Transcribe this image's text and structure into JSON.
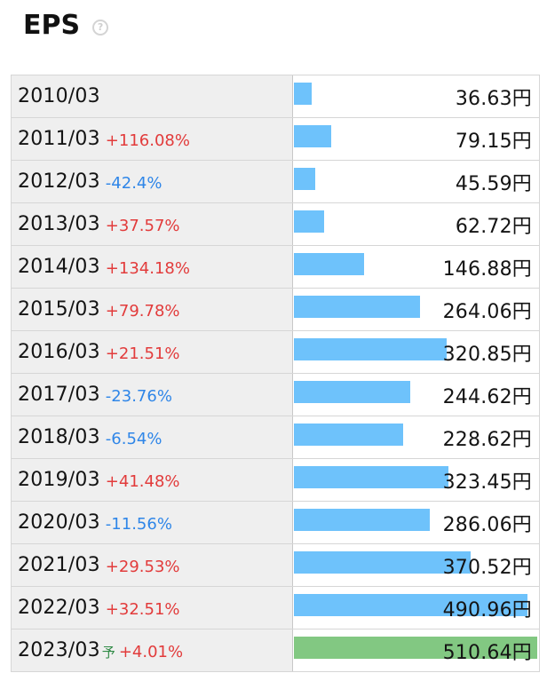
{
  "header": {
    "title": "EPS",
    "help_icon": "question-circle-icon"
  },
  "colors": {
    "bar_actual": "#6ec2fb",
    "bar_forecast": "#82c882",
    "change_up": "#e23b3b",
    "change_down": "#2f86e8",
    "forecast_mark": "#2f8a45"
  },
  "eps_rows": [
    {
      "period": "2010/03",
      "forecast": "",
      "change": "",
      "direction": "",
      "value": "36.63円",
      "eps": 36.63
    },
    {
      "period": "2011/03",
      "forecast": "",
      "change": "+116.08%",
      "direction": "up",
      "value": "79.15円",
      "eps": 79.15
    },
    {
      "period": "2012/03",
      "forecast": "",
      "change": "-42.4%",
      "direction": "down",
      "value": "45.59円",
      "eps": 45.59
    },
    {
      "period": "2013/03",
      "forecast": "",
      "change": "+37.57%",
      "direction": "up",
      "value": "62.72円",
      "eps": 62.72
    },
    {
      "period": "2014/03",
      "forecast": "",
      "change": "+134.18%",
      "direction": "up",
      "value": "146.88円",
      "eps": 146.88
    },
    {
      "period": "2015/03",
      "forecast": "",
      "change": "+79.78%",
      "direction": "up",
      "value": "264.06円",
      "eps": 264.06
    },
    {
      "period": "2016/03",
      "forecast": "",
      "change": "+21.51%",
      "direction": "up",
      "value": "320.85円",
      "eps": 320.85
    },
    {
      "period": "2017/03",
      "forecast": "",
      "change": "-23.76%",
      "direction": "down",
      "value": "244.62円",
      "eps": 244.62
    },
    {
      "period": "2018/03",
      "forecast": "",
      "change": "-6.54%",
      "direction": "down",
      "value": "228.62円",
      "eps": 228.62
    },
    {
      "period": "2019/03",
      "forecast": "",
      "change": "+41.48%",
      "direction": "up",
      "value": "323.45円",
      "eps": 323.45
    },
    {
      "period": "2020/03",
      "forecast": "",
      "change": "-11.56%",
      "direction": "down",
      "value": "286.06円",
      "eps": 286.06
    },
    {
      "period": "2021/03",
      "forecast": "",
      "change": "+29.53%",
      "direction": "up",
      "value": "370.52円",
      "eps": 370.52
    },
    {
      "period": "2022/03",
      "forecast": "",
      "change": "+32.51%",
      "direction": "up",
      "value": "490.96円",
      "eps": 490.96
    },
    {
      "period": "2023/03",
      "forecast": "予",
      "change": "+4.01%",
      "direction": "up",
      "value": "510.64円",
      "eps": 510.64
    }
  ]
}
